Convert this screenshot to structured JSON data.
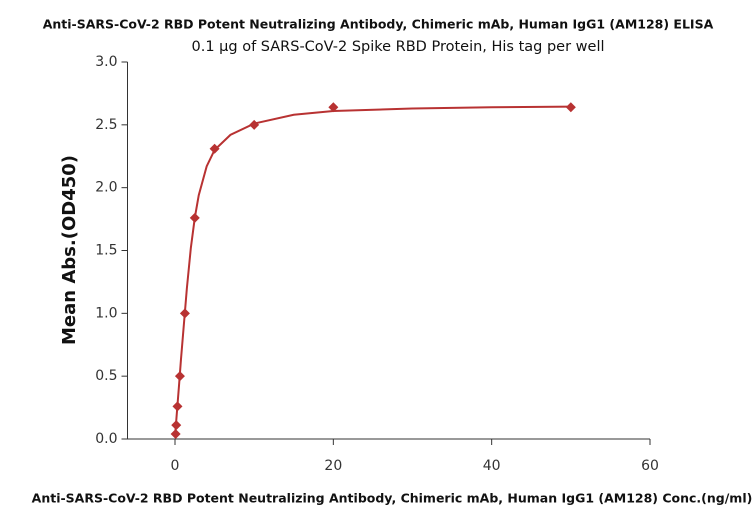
{
  "chart_data": {
    "type": "scatter",
    "title": "Anti-SARS-CoV-2 RBD Potent Neutralizing Antibody, Chimeric mAb, Human IgG1 (AM128)  ELISA",
    "subtitle": "0.1 µg of SARS-CoV-2 Spike RBD Protein, His tag per well",
    "x_label": "Anti-SARS-CoV-2 RBD Potent Neutralizing Antibody, Chimeric mAb, Human IgG1 (AM128) Conc.(ng/ml)",
    "y_label": "Mean Abs.(OD450)",
    "series": [
      {
        "color": "#b83232",
        "x": [
          0.078,
          0.156,
          0.3125,
          0.625,
          1.25,
          2.5,
          5,
          10,
          20,
          50
        ],
        "values": [
          0.04,
          0.11,
          0.26,
          0.5,
          1.0,
          1.76,
          2.31,
          2.5,
          2.64,
          2.64
        ]
      }
    ],
    "curve": {
      "color": "#b83232",
      "x": [
        0,
        0.25,
        0.5,
        0.75,
        1,
        1.5,
        2,
        2.5,
        3,
        4,
        5,
        7,
        10,
        15,
        20,
        30,
        40,
        50
      ],
      "values": [
        0.02,
        0.22,
        0.42,
        0.63,
        0.82,
        1.2,
        1.52,
        1.76,
        1.94,
        2.17,
        2.3,
        2.42,
        2.51,
        2.58,
        2.61,
        2.63,
        2.64,
        2.645
      ]
    },
    "xlim": [
      -6,
      60
    ],
    "ylim": [
      0,
      3
    ],
    "xticks": [
      0,
      20,
      40,
      60
    ],
    "yticks": [
      {
        "value": 0,
        "label": "0.0"
      },
      {
        "value": 0.5,
        "label": "0.5"
      },
      {
        "value": 1,
        "label": "1.0"
      },
      {
        "value": 1.5,
        "label": "1.5"
      },
      {
        "value": 2,
        "label": "2.0"
      },
      {
        "value": 2.5,
        "label": "2.5"
      },
      {
        "value": 3,
        "label": "3.0"
      }
    ]
  }
}
